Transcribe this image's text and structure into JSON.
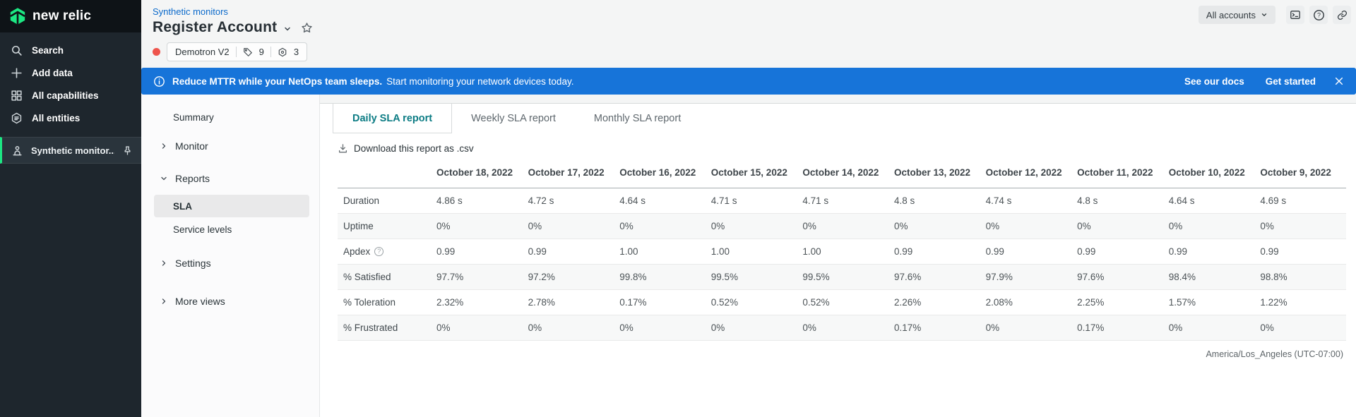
{
  "colors": {
    "brand_green": "#1ce783",
    "banner_blue": "#1774d9",
    "link_blue": "#0b6acb",
    "active_tab_teal": "#0c7c84",
    "health_red": "#ee544c"
  },
  "sidebar": {
    "logo_text": "new relic",
    "items": [
      {
        "id": "search",
        "label": "Search"
      },
      {
        "id": "add-data",
        "label": "Add data"
      },
      {
        "id": "all-capabilities",
        "label": "All capabilities"
      },
      {
        "id": "all-entities",
        "label": "All entities"
      }
    ],
    "pinned_item": {
      "label": "Synthetic monitor..."
    }
  },
  "topbar": {
    "account_switcher_label": "All accounts"
  },
  "page_header": {
    "breadcrumb": "Synthetic monitors",
    "title": "Register Account",
    "account_pill": {
      "account_name": "Demotron V2",
      "tags_count": "9",
      "related_entities_count": "3"
    }
  },
  "banner": {
    "message_bold": "Reduce MTTR while your NetOps team sleeps.",
    "message_regular": "Start monitoring your network devices today.",
    "docs_link_label": "See our docs",
    "get_started_label": "Get started"
  },
  "subnav": {
    "items": [
      {
        "id": "summary",
        "label": "Summary",
        "type": "link"
      },
      {
        "id": "monitor",
        "label": "Monitor",
        "type": "group",
        "expanded": false
      },
      {
        "id": "reports",
        "label": "Reports",
        "type": "group",
        "expanded": true
      },
      {
        "id": "sla",
        "label": "SLA",
        "type": "child",
        "active": true
      },
      {
        "id": "service-levels",
        "label": "Service levels",
        "type": "child",
        "active": false
      },
      {
        "id": "settings",
        "label": "Settings",
        "type": "group",
        "expanded": false,
        "gap_top": true
      },
      {
        "id": "more-views",
        "label": "More views",
        "type": "group",
        "expanded": false,
        "gap_top": true
      }
    ]
  },
  "report": {
    "tabs": [
      {
        "id": "daily",
        "label": "Daily SLA report",
        "active": true
      },
      {
        "id": "weekly",
        "label": "Weekly SLA report",
        "active": false
      },
      {
        "id": "monthly",
        "label": "Monthly SLA report",
        "active": false
      }
    ],
    "download_label": "Download this report as .csv",
    "table": {
      "columns": [
        "October 18, 2022",
        "October 17, 2022",
        "October 16, 2022",
        "October 15, 2022",
        "October 14, 2022",
        "October 13, 2022",
        "October 12, 2022",
        "October 11, 2022",
        "October 10, 2022",
        "October 9, 2022"
      ],
      "rows": [
        {
          "label": "Duration",
          "has_help": false,
          "values": [
            "4.86 s",
            "4.72 s",
            "4.64 s",
            "4.71 s",
            "4.71 s",
            "4.8 s",
            "4.74 s",
            "4.8 s",
            "4.64 s",
            "4.69 s"
          ]
        },
        {
          "label": "Uptime",
          "has_help": false,
          "values": [
            "0%",
            "0%",
            "0%",
            "0%",
            "0%",
            "0%",
            "0%",
            "0%",
            "0%",
            "0%"
          ]
        },
        {
          "label": "Apdex",
          "has_help": true,
          "values": [
            "0.99",
            "0.99",
            "1.00",
            "1.00",
            "1.00",
            "0.99",
            "0.99",
            "0.99",
            "0.99",
            "0.99"
          ]
        },
        {
          "label": "% Satisfied",
          "has_help": false,
          "values": [
            "97.7%",
            "97.2%",
            "99.8%",
            "99.5%",
            "99.5%",
            "97.6%",
            "97.9%",
            "97.6%",
            "98.4%",
            "98.8%"
          ]
        },
        {
          "label": "% Toleration",
          "has_help": false,
          "values": [
            "2.32%",
            "2.78%",
            "0.17%",
            "0.52%",
            "0.52%",
            "2.26%",
            "2.08%",
            "2.25%",
            "1.57%",
            "1.22%"
          ]
        },
        {
          "label": "% Frustrated",
          "has_help": false,
          "values": [
            "0%",
            "0%",
            "0%",
            "0%",
            "0%",
            "0.17%",
            "0%",
            "0.17%",
            "0%",
            "0%"
          ]
        }
      ]
    },
    "timezone_note": "America/Los_Angeles (UTC-07:00)"
  }
}
